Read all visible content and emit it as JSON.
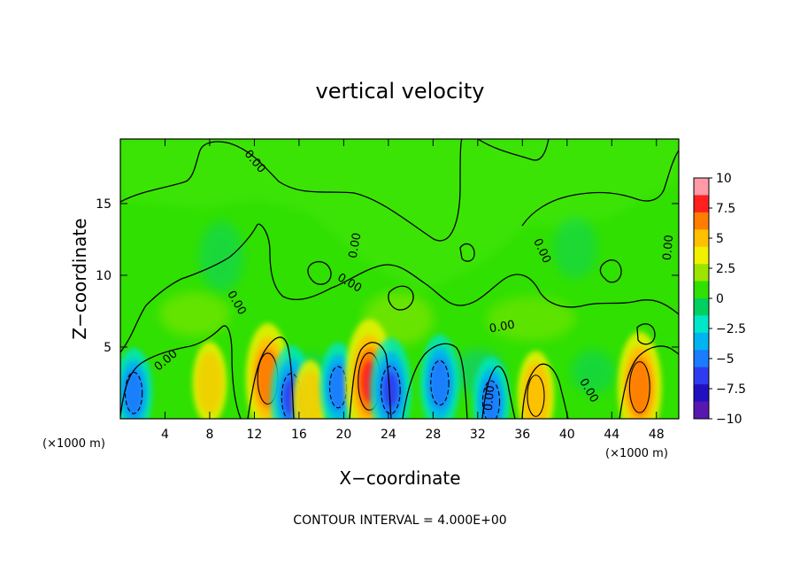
{
  "chart_data": {
    "type": "heatmap",
    "title": "vertical velocity",
    "xlabel": "X−coordinate",
    "ylabel": "Z−coordinate",
    "x_unit_left": "(×1000 m)",
    "x_unit_right": "(×1000 m)",
    "xlim": [
      0,
      50
    ],
    "ylim": [
      0,
      19.5
    ],
    "xticks": [
      4,
      8,
      12,
      16,
      20,
      24,
      28,
      32,
      36,
      40,
      44,
      48
    ],
    "yticks": [
      5,
      10,
      15
    ],
    "colorbar": {
      "ticks": [
        10,
        7.5,
        5,
        2.5,
        0,
        -2.5,
        -5,
        -7.5,
        -10
      ],
      "tick_labels": [
        "10",
        "7.5",
        "5",
        "2.5",
        "0",
        "−2.5",
        "−5",
        "−7.5",
        "−10"
      ],
      "colors": [
        "#ff9aa8",
        "#ff2020",
        "#ff7d00",
        "#ffc000",
        "#f0f000",
        "#9be400",
        "#30e000",
        "#00d060",
        "#00e6c8",
        "#00b4f0",
        "#1a7cff",
        "#2e3cf0",
        "#2010c0",
        "#5818b0"
      ]
    },
    "contour_labels": [
      "0.00",
      "0.00",
      "0.00",
      "0.00",
      "0.00",
      "0.00",
      "0.00",
      "0.00",
      "0.00",
      "0.00"
    ],
    "contour_interval_text": "CONTOUR INTERVAL = 4.000E+00",
    "features": [
      {
        "sign": "positive",
        "x": 8,
        "z": 2.5,
        "w": 3
      },
      {
        "sign": "positive",
        "x": 13.2,
        "z": 2.8,
        "w": 7
      },
      {
        "sign": "negative",
        "x": 15.3,
        "z": 1.5,
        "w": -6
      },
      {
        "sign": "positive",
        "x": 17,
        "z": 1.2,
        "w": 3
      },
      {
        "sign": "negative",
        "x": 19.5,
        "z": 2.2,
        "w": -4
      },
      {
        "sign": "positive",
        "x": 22.3,
        "z": 2.6,
        "w": 9
      },
      {
        "sign": "negative",
        "x": 24.2,
        "z": 2.0,
        "w": -6
      },
      {
        "sign": "negative",
        "x": 28.6,
        "z": 2.5,
        "w": -5
      },
      {
        "sign": "negative",
        "x": 33.2,
        "z": 1.2,
        "w": -4
      },
      {
        "sign": "positive",
        "x": 37.2,
        "z": 1.6,
        "w": 4
      },
      {
        "sign": "positive",
        "x": 46.5,
        "z": 2.2,
        "w": 7
      },
      {
        "sign": "negative",
        "x": 1.2,
        "z": 1.8,
        "w": -4
      }
    ]
  }
}
